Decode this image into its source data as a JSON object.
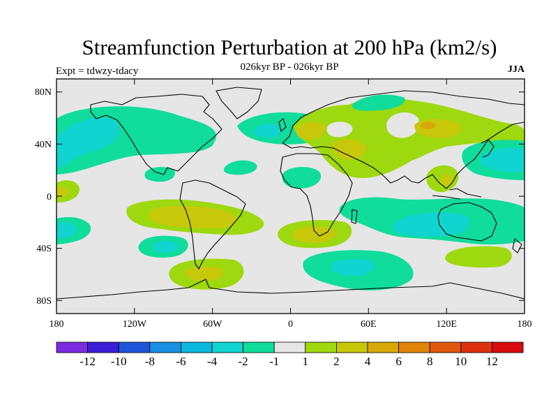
{
  "title": "Streamfunction Perturbation at 200 hPa (km2/s)",
  "subtitle": "026kyr BP - 026kyr BP",
  "experiment": "Expt = tdwzy-tdacy",
  "season": "JJA",
  "lat_labels": [
    "80N",
    "40N",
    "0",
    "40S",
    "80S"
  ],
  "lon_labels": [
    "180",
    "120W",
    "60W",
    "0",
    "60E",
    "120E",
    "180"
  ],
  "colorbar": {
    "colors": [
      "#7b2be0",
      "#3a1fd6",
      "#1f55d8",
      "#1a8ee0",
      "#0bb7dd",
      "#10d4d0",
      "#10dc9b",
      "#e6e6e6",
      "#9ed80e",
      "#c8c80a",
      "#d8a80a",
      "#e0840a",
      "#e0580e",
      "#dc300e",
      "#d80c0c"
    ],
    "labels": [
      "-12",
      "-10",
      "-8",
      "-6",
      "-4",
      "-2",
      "-1",
      "1",
      "2",
      "4",
      "6",
      "8",
      "10",
      "12"
    ]
  }
}
